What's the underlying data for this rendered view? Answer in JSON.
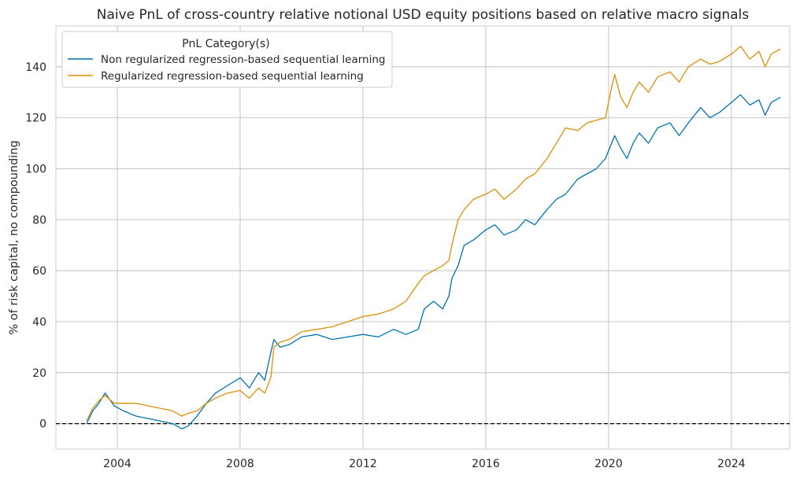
{
  "chart_data": {
    "type": "line",
    "title": "Naive PnL of cross-country relative notional USD equity positions based on relative macro signals",
    "xlabel": "",
    "ylabel": "% of risk capital, no compounding",
    "xlim": [
      2002.0,
      2025.9
    ],
    "ylim": [
      -10,
      156
    ],
    "xticks": [
      2004,
      2008,
      2012,
      2016,
      2020,
      2024
    ],
    "yticks": [
      0,
      20,
      40,
      60,
      80,
      100,
      120,
      140
    ],
    "grid": true,
    "legend": {
      "title": "PnL Category(s)",
      "position": "top-left"
    },
    "reference_line": {
      "y": 0,
      "style": "dashed",
      "color": "#000000"
    },
    "series": [
      {
        "name": "Non regularized regression-based sequential learning",
        "color": "#0173b2",
        "x": [
          2003.0,
          2003.2,
          2003.4,
          2003.6,
          2003.9,
          2004.2,
          2004.6,
          2005.0,
          2005.4,
          2005.8,
          2006.1,
          2006.3,
          2006.6,
          2006.9,
          2007.2,
          2007.6,
          2008.0,
          2008.3,
          2008.6,
          2008.8,
          2009.0,
          2009.1,
          2009.3,
          2009.6,
          2010.0,
          2010.5,
          2011.0,
          2011.5,
          2012.0,
          2012.5,
          2013.0,
          2013.4,
          2013.8,
          2014.0,
          2014.3,
          2014.6,
          2014.8,
          2014.9,
          2015.1,
          2015.3,
          2015.6,
          2016.0,
          2016.3,
          2016.6,
          2017.0,
          2017.3,
          2017.6,
          2018.0,
          2018.3,
          2018.6,
          2019.0,
          2019.3,
          2019.6,
          2019.9,
          2020.1,
          2020.2,
          2020.4,
          2020.6,
          2020.8,
          2021.0,
          2021.3,
          2021.6,
          2022.0,
          2022.3,
          2022.6,
          2023.0,
          2023.3,
          2023.6,
          2024.0,
          2024.3,
          2024.6,
          2024.9,
          2025.1,
          2025.3,
          2025.6
        ],
        "values": [
          0,
          5,
          8,
          12,
          7,
          5,
          3,
          2,
          1,
          0,
          -2,
          -1,
          3,
          8,
          12,
          15,
          18,
          14,
          20,
          17,
          28,
          33,
          30,
          31,
          34,
          35,
          33,
          34,
          35,
          34,
          37,
          35,
          37,
          45,
          48,
          45,
          50,
          57,
          62,
          70,
          72,
          76,
          78,
          74,
          76,
          80,
          78,
          84,
          88,
          90,
          96,
          98,
          100,
          104,
          110,
          113,
          108,
          104,
          110,
          114,
          110,
          116,
          118,
          113,
          118,
          124,
          120,
          122,
          126,
          129,
          125,
          127,
          121,
          126,
          128
        ]
      },
      {
        "name": "Regularized regression-based sequential learning",
        "color": "#de8f05",
        "x": [
          2003.0,
          2003.2,
          2003.4,
          2003.6,
          2003.9,
          2004.2,
          2004.6,
          2005.0,
          2005.4,
          2005.8,
          2006.1,
          2006.3,
          2006.6,
          2006.9,
          2007.2,
          2007.6,
          2008.0,
          2008.3,
          2008.6,
          2008.8,
          2009.0,
          2009.1,
          2009.3,
          2009.6,
          2010.0,
          2010.5,
          2011.0,
          2011.5,
          2012.0,
          2012.5,
          2013.0,
          2013.4,
          2013.8,
          2014.0,
          2014.3,
          2014.6,
          2014.8,
          2014.9,
          2015.1,
          2015.3,
          2015.6,
          2016.0,
          2016.3,
          2016.6,
          2017.0,
          2017.3,
          2017.6,
          2018.0,
          2018.3,
          2018.6,
          2019.0,
          2019.3,
          2019.6,
          2019.9,
          2020.1,
          2020.2,
          2020.4,
          2020.6,
          2020.8,
          2021.0,
          2021.3,
          2021.6,
          2022.0,
          2022.3,
          2022.6,
          2023.0,
          2023.3,
          2023.6,
          2024.0,
          2024.3,
          2024.6,
          2024.9,
          2025.1,
          2025.3,
          2025.6
        ],
        "values": [
          1,
          6,
          9,
          11,
          8,
          8,
          8,
          7,
          6,
          5,
          3,
          4,
          5,
          8,
          10,
          12,
          13,
          10,
          14,
          12,
          18,
          30,
          32,
          33,
          36,
          37,
          38,
          40,
          42,
          43,
          45,
          48,
          55,
          58,
          60,
          62,
          64,
          70,
          80,
          84,
          88,
          90,
          92,
          88,
          92,
          96,
          98,
          104,
          110,
          116,
          115,
          118,
          119,
          120,
          132,
          137,
          128,
          124,
          130,
          134,
          130,
          136,
          138,
          134,
          140,
          143,
          141,
          142,
          145,
          148,
          143,
          146,
          140,
          145,
          147
        ]
      }
    ]
  }
}
